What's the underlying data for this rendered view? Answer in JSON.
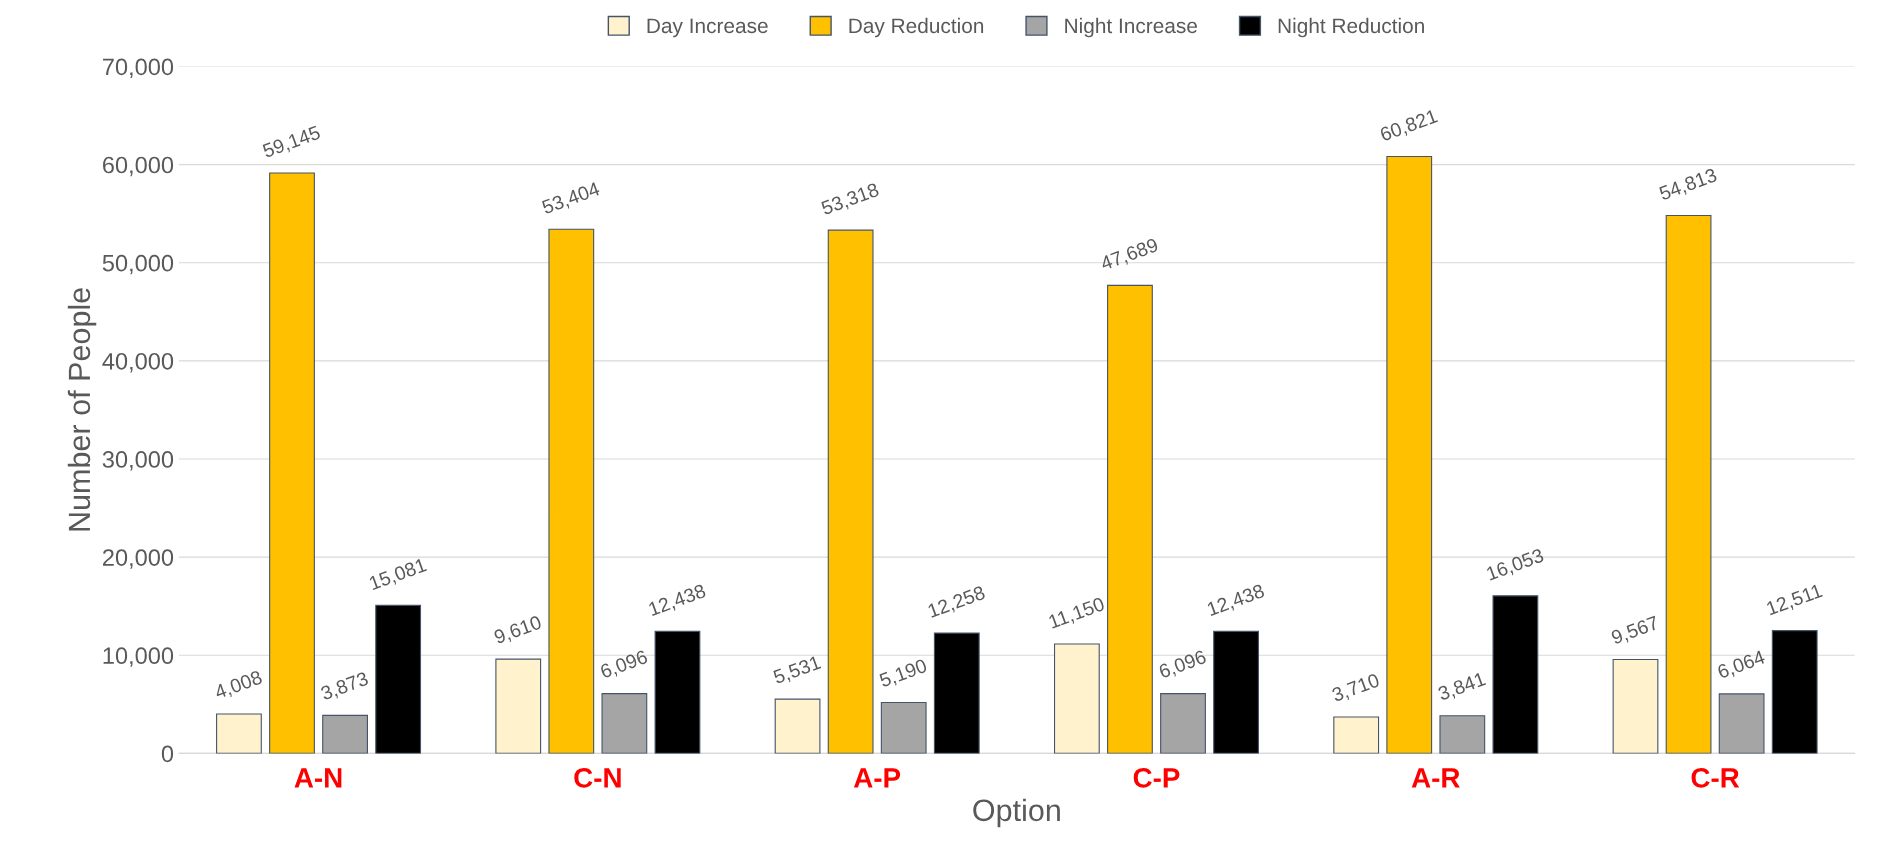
{
  "chart_data": {
    "type": "bar",
    "xlabel": "Option",
    "ylabel": "Number of People",
    "categories": [
      "A-N",
      "C-N",
      "A-P",
      "C-P",
      "A-R",
      "C-R"
    ],
    "series": [
      {
        "name": "Day Increase",
        "color": "#fff2cc",
        "values": [
          4008,
          9610,
          5531,
          11150,
          3710,
          9567
        ],
        "value_labels": [
          "4,008",
          "9,610",
          "5,531",
          "11,150",
          "3,710",
          "9,567"
        ]
      },
      {
        "name": "Day Reduction",
        "color": "#ffc000",
        "values": [
          59145,
          53404,
          53318,
          47689,
          60821,
          54813
        ],
        "value_labels": [
          "59,145",
          "53,404",
          "53,318",
          "47,689",
          "60,821",
          "54,813"
        ]
      },
      {
        "name": "Night Increase",
        "color": "#a5a5a5",
        "values": [
          3873,
          6096,
          5190,
          6096,
          3841,
          6064
        ],
        "value_labels": [
          "3,873",
          "6,096",
          "5,190",
          "6,096",
          "3,841",
          "6,064"
        ]
      },
      {
        "name": "Night Reduction",
        "color": "#000000",
        "values": [
          15081,
          12438,
          12258,
          12438,
          16053,
          12511
        ],
        "value_labels": [
          "15,081",
          "12,438",
          "12,258",
          "12,438",
          "16,053",
          "12,511"
        ]
      }
    ],
    "ylim": [
      0,
      70000
    ],
    "yticks": [
      0,
      {
        "value": 10000,
        "label": "10,000"
      },
      {
        "value": 20000,
        "label": "20,000"
      },
      {
        "value": 30000,
        "label": "30,000"
      },
      {
        "value": 40000,
        "label": "40,000"
      },
      {
        "value": 50000,
        "label": "50,000"
      },
      {
        "value": 60000,
        "label": "60,000"
      },
      {
        "value": 70000,
        "label": "70,000"
      }
    ],
    "grid": "y",
    "legend": "top"
  }
}
